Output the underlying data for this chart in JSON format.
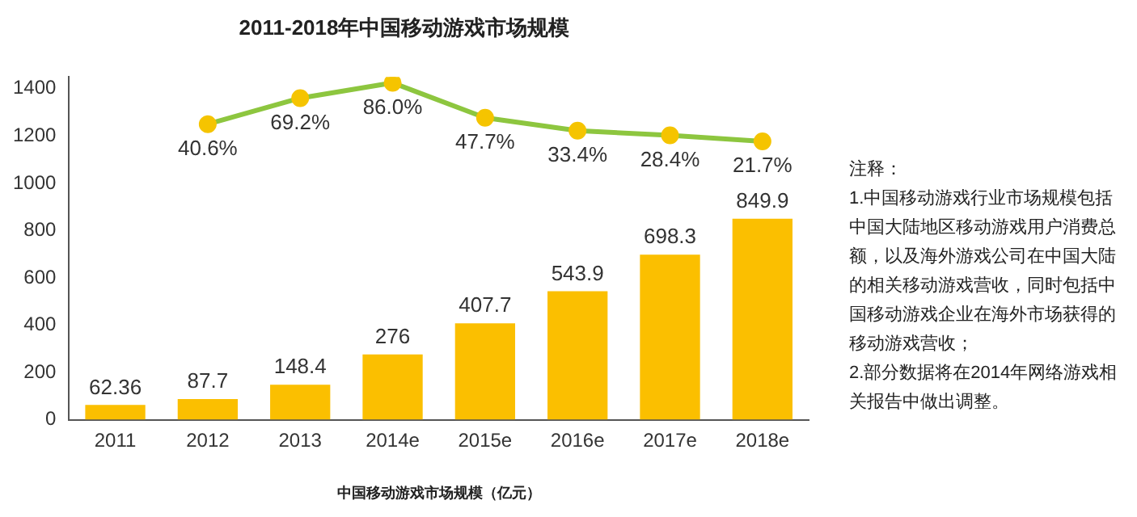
{
  "chart_data": {
    "type": "bar",
    "title": "2011-2018年中国移动游戏市场规模",
    "xlabel": "中国移动游戏市场规模（亿元）",
    "categories": [
      "2011",
      "2012",
      "2013",
      "2014e",
      "2015e",
      "2016e",
      "2017e",
      "2018e"
    ],
    "series": [
      {
        "color": "#fbbf00",
        "values": [
          62.36,
          87.7,
          148.4,
          276,
          407.7,
          543.9,
          698.3,
          849.9
        ],
        "value_labels": [
          "62.36",
          "87.7",
          "148.4",
          "276",
          "407.7",
          "543.9",
          "698.3",
          "849.9"
        ]
      },
      {
        "type": "line",
        "axis": "y2",
        "color": "#8dc63f",
        "values": [
          null,
          40.6,
          69.2,
          86.0,
          47.7,
          33.4,
          28.4,
          21.7
        ],
        "value_labels": [
          null,
          "40.6%",
          "69.2%",
          "86.0%",
          "47.7%",
          "33.4%",
          "28.4%",
          "21.7%"
        ]
      }
    ],
    "ylim": [
      0,
      1450
    ],
    "yticks": [
      0,
      200,
      400,
      600,
      800,
      1000,
      1200,
      1400
    ],
    "y2lim": [
      -284,
      92.5
    ],
    "grid": false,
    "legend": false,
    "marker": "circle",
    "annotations": [
      "注释：",
      "1.中国移动游戏行业市场规模包括中国大陆地区移动游戏用户消费总额，以及海外游戏公司在中国大陆的相关移动游戏营收，同时包括中国移动游戏企业在海外市场获得的移动游戏营收；",
      "2.部分数据将在2014年网络游戏相关报告中做出调整。"
    ]
  }
}
